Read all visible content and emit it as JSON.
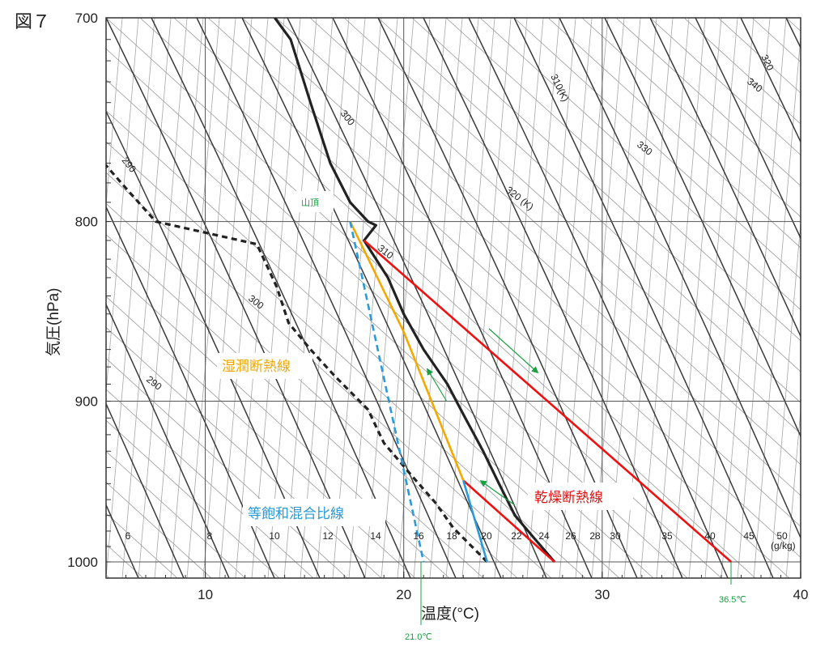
{
  "chart_data": {
    "type": "line",
    "figure_label": "図７",
    "xlabel": "温度(°C)",
    "ylabel": "気圧(hPa)",
    "xlim": [
      5,
      40
    ],
    "ylim": [
      1000,
      700
    ],
    "yscale": "log",
    "x_ticks": [
      10,
      20,
      30,
      40
    ],
    "y_ticks": [
      700,
      800,
      900,
      1000
    ],
    "grid": true,
    "series": [
      {
        "color": "#222222",
        "style": "solid",
        "points": [
          [
            13.5,
            700
          ],
          [
            14.3,
            710
          ],
          [
            15.3,
            740
          ],
          [
            16.3,
            770
          ],
          [
            17.3,
            790
          ],
          [
            18.2,
            800
          ],
          [
            18.6,
            802
          ],
          [
            18.0,
            810
          ],
          [
            19.2,
            830
          ],
          [
            20.0,
            850
          ],
          [
            21.0,
            870
          ],
          [
            22.2,
            890
          ],
          [
            23.1,
            910
          ],
          [
            24.0,
            930
          ],
          [
            24.8,
            950
          ],
          [
            25.6,
            970
          ],
          [
            26.6,
            985
          ],
          [
            27.6,
            1000
          ]
        ]
      },
      {
        "color": "#222222",
        "style": "dashed",
        "points": [
          [
            4.9,
            770
          ],
          [
            6.2,
            785
          ],
          [
            7.5,
            800
          ],
          [
            12.6,
            812
          ],
          [
            13.6,
            835
          ],
          [
            14.2,
            855
          ],
          [
            15.3,
            870
          ],
          [
            16.5,
            885
          ],
          [
            18.2,
            905
          ],
          [
            19.0,
            925
          ],
          [
            20.4,
            945
          ],
          [
            21.6,
            962
          ],
          [
            22.5,
            978
          ],
          [
            24.2,
            1000
          ]
        ]
      },
      {
        "name": "乾燥断熱線",
        "color": "#ee1111",
        "style": "solid",
        "points": [
          [
            18.0,
            810
          ],
          [
            36.5,
            1000
          ]
        ]
      },
      {
        "name": "乾燥断熱線",
        "color": "#ee1111",
        "style": "solid",
        "points": [
          [
            23.0,
            948
          ],
          [
            27.6,
            1000
          ]
        ]
      },
      {
        "name": "湿潤断熱線",
        "color": "#f5a800",
        "style": "solid",
        "points": [
          [
            17.3,
            800
          ],
          [
            20.0,
            860
          ],
          [
            23.0,
            948
          ]
        ]
      },
      {
        "name": "等飽和混合比線",
        "color": "#2a9ad8",
        "style": "dashed",
        "points": [
          [
            17.3,
            800
          ],
          [
            21.0,
            1000
          ]
        ]
      },
      {
        "color": "#2a9ad8",
        "style": "solid",
        "points": [
          [
            23.0,
            948
          ],
          [
            24.2,
            1000
          ]
        ]
      }
    ],
    "mixing_ratio_labels": [
      "6",
      "8",
      "10",
      "12",
      "14",
      "16",
      "18",
      "20",
      "22",
      "24",
      "26",
      "28",
      "30",
      "35",
      "40",
      "45",
      "50"
    ],
    "mixing_ratio_unit": "(g/kg)",
    "isotherm_labels": [
      "290",
      "300",
      "310(K)",
      "320",
      "320 (K)",
      "330",
      "340",
      "290",
      "300",
      "310"
    ],
    "annotations": {
      "summit": "山頂",
      "moist_adiabat": "湿潤断熱線",
      "dry_adiabat": "乾燥断熱線",
      "saturation_mixing_ratio": "等飽和混合比線",
      "temp_a": "21.0℃",
      "temp_b": "36.5℃"
    },
    "colors": {
      "text": "#222222",
      "green": "#19a040",
      "grid": "#444444",
      "thin": "#9a9a9a"
    }
  }
}
